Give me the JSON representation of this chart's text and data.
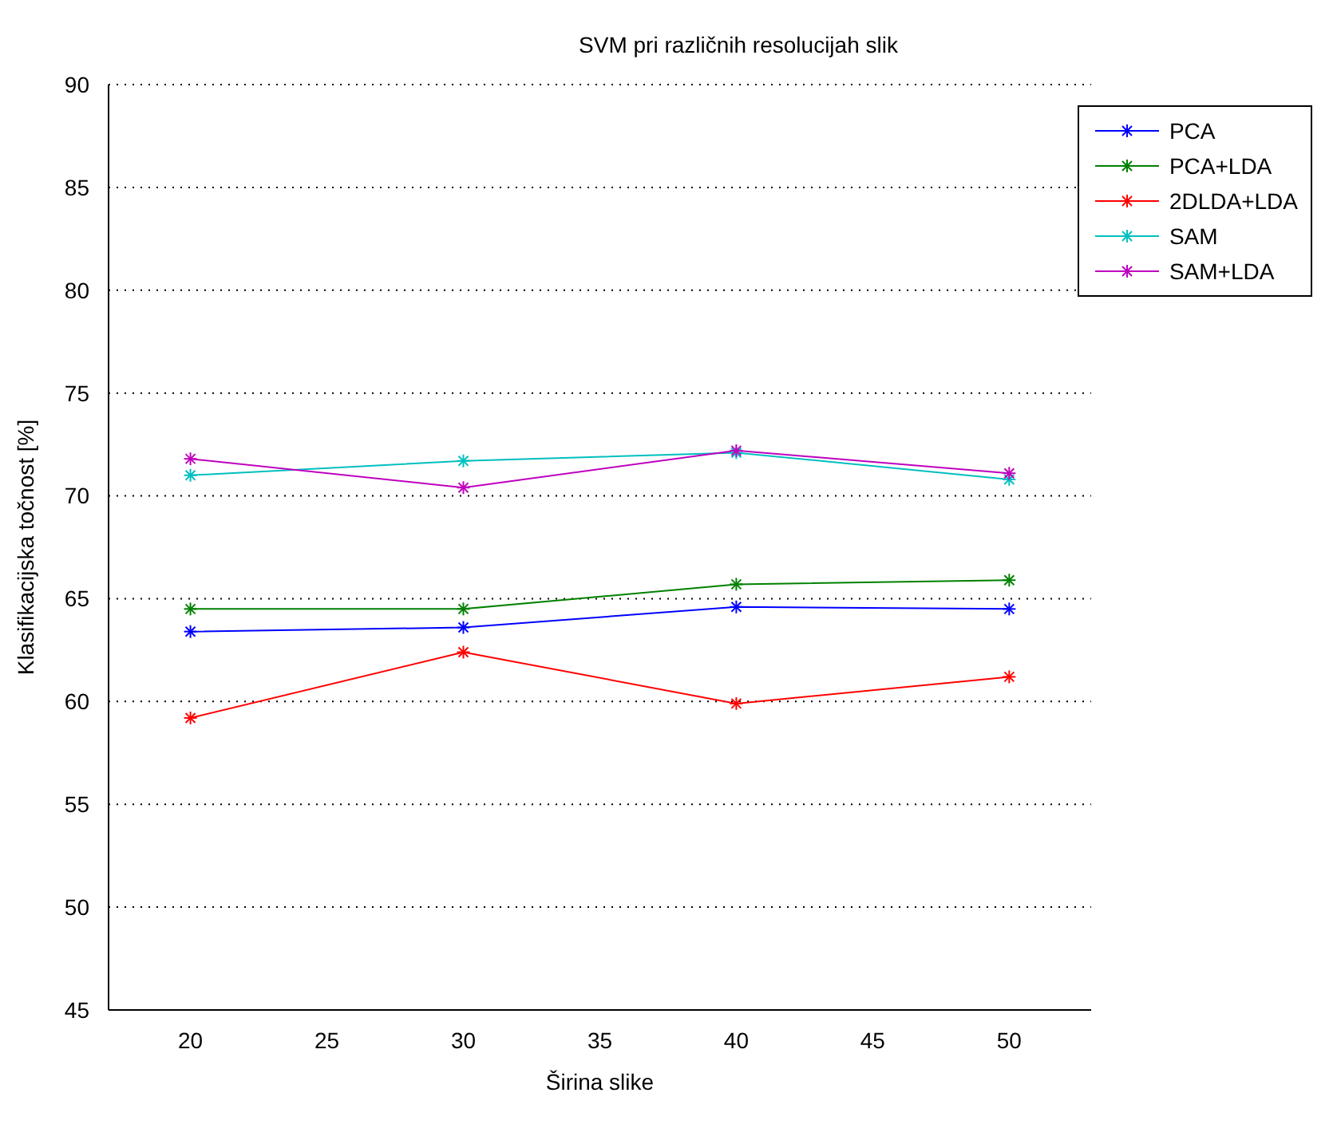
{
  "chart_data": {
    "type": "line",
    "title": "SVM pri različnih resolucijah slik",
    "xlabel": "Širina slike",
    "ylabel": "Klasifikacijska točnost [%]",
    "x": [
      20,
      30,
      40,
      50
    ],
    "xlim": [
      17,
      53
    ],
    "xticks": [
      20,
      25,
      30,
      35,
      40,
      45,
      50
    ],
    "ylim": [
      45,
      90
    ],
    "yticks": [
      45,
      50,
      55,
      60,
      65,
      70,
      75,
      80,
      85,
      90
    ],
    "grid": "y",
    "legend": "top right",
    "marker": "cross",
    "line_style": "solid",
    "series": [
      {
        "name": "PCA",
        "color": "#0000ff",
        "values": [
          63.4,
          63.6,
          64.6,
          64.5
        ]
      },
      {
        "name": "PCA+LDA",
        "color": "#008000",
        "values": [
          64.5,
          64.5,
          65.7,
          65.9
        ]
      },
      {
        "name": "2DLDA+LDA",
        "color": "#ff0000",
        "values": [
          59.2,
          62.4,
          59.9,
          61.2
        ]
      },
      {
        "name": "SAM",
        "color": "#00bfbf",
        "values": [
          71.0,
          71.7,
          72.1,
          70.8
        ]
      },
      {
        "name": "SAM+LDA",
        "color": "#bf00bf",
        "values": [
          71.8,
          70.4,
          72.2,
          71.1
        ]
      }
    ]
  }
}
